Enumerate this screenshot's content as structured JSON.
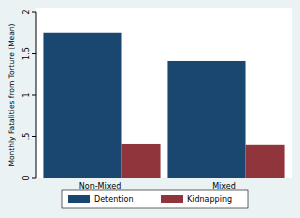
{
  "chart_data": {
    "type": "bar",
    "y_label": "Monthly Fatalities from Torture (Mean)",
    "categories": [
      "Non-Mixed",
      "Mixed"
    ],
    "series": [
      {
        "name": "Detention",
        "color": "#1a476f",
        "values": [
          1.75,
          1.41
        ]
      },
      {
        "name": "Kidnapping",
        "color": "#90353b",
        "values": [
          0.41,
          0.4
        ]
      }
    ],
    "ylim": [
      0,
      2
    ],
    "yticks": [
      0,
      {
        "value": 0.5,
        "label": ".5"
      },
      1,
      1.5,
      2
    ],
    "grid": false,
    "legend": "bottom"
  }
}
